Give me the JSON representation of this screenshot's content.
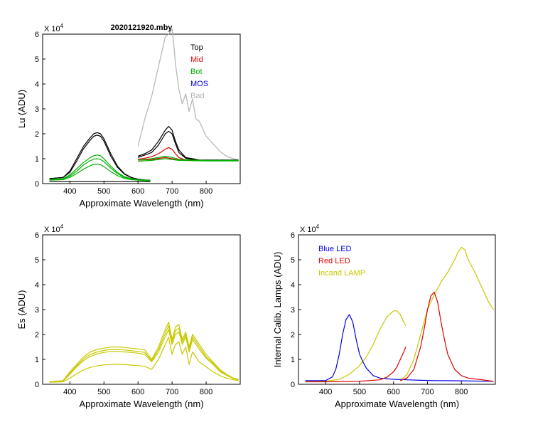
{
  "chart_data": [
    {
      "id": "lu",
      "type": "line",
      "title": "2020121920.mby",
      "xlabel": "Approximate Wavelength (nm)",
      "ylabel": "Lu (ADU)",
      "exponent_label": "X 10",
      "exponent_power": "4",
      "xlim": [
        320,
        900
      ],
      "ylim": [
        0,
        6
      ],
      "xticks": [
        400,
        500,
        600,
        700,
        800
      ],
      "yticks": [
        0,
        1,
        2,
        3,
        4,
        5,
        6
      ],
      "legend": [
        {
          "name": "Top",
          "color": "#000000"
        },
        {
          "name": "Mid",
          "color": "#e00000"
        },
        {
          "name": "Bot",
          "color": "#00b000"
        },
        {
          "name": "MOS",
          "color": "#0000d0"
        },
        {
          "name": "Bad",
          "color": "#b4b4b4"
        }
      ],
      "series": [
        {
          "name": "Bad",
          "color": "#b4b4b4",
          "x": [
            600,
            620,
            640,
            660,
            680,
            690,
            695,
            700,
            705,
            710,
            720,
            725,
            730,
            740,
            750,
            760,
            770,
            780,
            800,
            820,
            840,
            860,
            880,
            895
          ],
          "y": [
            1.5,
            2.6,
            3.5,
            4.7,
            5.9,
            6.0,
            6.1,
            6.2,
            5.6,
            4.8,
            3.8,
            3.5,
            3.2,
            3.6,
            2.9,
            3.4,
            2.6,
            2.5,
            1.9,
            1.6,
            1.3,
            1.1,
            1.0,
            0.95
          ]
        },
        {
          "name": "Top 1",
          "color": "#000000",
          "x": [
            340,
            380,
            400,
            420,
            440,
            460,
            470,
            480,
            490,
            500,
            520,
            540,
            560,
            580,
            600,
            620,
            636
          ],
          "y": [
            0.2,
            0.25,
            0.5,
            1.0,
            1.5,
            1.85,
            2.0,
            2.05,
            2.0,
            1.8,
            1.2,
            0.7,
            0.4,
            0.25,
            0.18,
            0.15,
            0.14
          ]
        },
        {
          "name": "Top 2",
          "color": "#000000",
          "x": [
            340,
            380,
            400,
            420,
            440,
            460,
            470,
            480,
            490,
            500,
            520,
            540,
            560,
            580,
            600,
            620,
            636
          ],
          "y": [
            0.2,
            0.25,
            0.45,
            0.9,
            1.4,
            1.75,
            1.9,
            1.95,
            1.9,
            1.7,
            1.1,
            0.65,
            0.38,
            0.24,
            0.17,
            0.14,
            0.13
          ]
        },
        {
          "name": "Top 3",
          "color": "#000000",
          "x": [
            600,
            620,
            640,
            660,
            680,
            690,
            700,
            710,
            720,
            740,
            760,
            780,
            800,
            840,
            880,
            895
          ],
          "y": [
            1.1,
            1.2,
            1.35,
            1.7,
            2.15,
            2.3,
            2.15,
            1.7,
            1.35,
            1.05,
            1.0,
            0.95,
            0.95,
            0.95,
            0.95,
            0.95
          ]
        },
        {
          "name": "Top 4",
          "color": "#000000",
          "x": [
            600,
            620,
            640,
            660,
            680,
            690,
            700,
            710,
            720,
            740,
            760,
            780,
            800,
            840,
            880,
            895
          ],
          "y": [
            1.05,
            1.15,
            1.25,
            1.55,
            2.0,
            2.1,
            2.0,
            1.6,
            1.25,
            1.02,
            0.97,
            0.93,
            0.93,
            0.93,
            0.93,
            0.93
          ]
        },
        {
          "name": "Mid 1",
          "color": "#e00000",
          "x": [
            600,
            620,
            640,
            660,
            680,
            690,
            700,
            710,
            720,
            740,
            760,
            800,
            840,
            880,
            895
          ],
          "y": [
            0.98,
            1.02,
            1.08,
            1.2,
            1.38,
            1.45,
            1.38,
            1.2,
            1.05,
            0.95,
            0.93,
            0.92,
            0.92,
            0.92,
            0.92
          ]
        },
        {
          "name": "Mid 2",
          "color": "#e00000",
          "x": [
            600,
            640,
            680,
            700,
            720,
            760,
            800,
            895
          ],
          "y": [
            0.95,
            0.97,
            1.05,
            1.0,
            0.95,
            0.93,
            0.92,
            0.92
          ]
        },
        {
          "name": "Bot 1",
          "color": "#00b000",
          "x": [
            340,
            380,
            400,
            420,
            440,
            460,
            470,
            480,
            490,
            500,
            520,
            540,
            560,
            580,
            600,
            620,
            636
          ],
          "y": [
            0.16,
            0.2,
            0.35,
            0.6,
            0.85,
            1.05,
            1.12,
            1.15,
            1.12,
            1.0,
            0.7,
            0.45,
            0.28,
            0.2,
            0.16,
            0.14,
            0.13
          ]
        },
        {
          "name": "Bot 2",
          "color": "#00b000",
          "x": [
            340,
            380,
            400,
            420,
            440,
            460,
            470,
            480,
            490,
            500,
            520,
            540,
            560,
            580,
            600,
            620,
            636
          ],
          "y": [
            0.15,
            0.18,
            0.3,
            0.5,
            0.75,
            0.92,
            0.98,
            1.0,
            0.97,
            0.88,
            0.62,
            0.4,
            0.25,
            0.18,
            0.15,
            0.13,
            0.12
          ]
        },
        {
          "name": "Bot 3",
          "color": "#00b000",
          "x": [
            340,
            380,
            400,
            420,
            440,
            460,
            470,
            480,
            490,
            500,
            520,
            540,
            560,
            580,
            600,
            620,
            636
          ],
          "y": [
            0.14,
            0.16,
            0.25,
            0.4,
            0.58,
            0.72,
            0.77,
            0.78,
            0.76,
            0.68,
            0.48,
            0.32,
            0.21,
            0.16,
            0.14,
            0.12,
            0.11
          ]
        },
        {
          "name": "Bot 4",
          "color": "#00b000",
          "x": [
            600,
            640,
            680,
            700,
            720,
            760,
            800,
            840,
            895
          ],
          "y": [
            0.95,
            1.0,
            1.1,
            1.05,
            0.98,
            0.95,
            0.93,
            0.93,
            0.93
          ]
        },
        {
          "name": "Bot 5",
          "color": "#00b000",
          "x": [
            600,
            640,
            680,
            700,
            720,
            760,
            800,
            840,
            895
          ],
          "y": [
            0.9,
            0.93,
            1.0,
            0.97,
            0.93,
            0.92,
            0.91,
            0.91,
            0.91
          ]
        },
        {
          "name": "Dark",
          "color": "#000000",
          "x": [
            340,
            400,
            500,
            600,
            636
          ],
          "y": [
            0.08,
            0.08,
            0.08,
            0.08,
            0.08
          ]
        }
      ]
    },
    {
      "id": "es",
      "type": "line",
      "title": "",
      "xlabel": "Approximate Wavelength (nm)",
      "ylabel": "Es  (ADU)",
      "exponent_label": "X 10",
      "exponent_power": "4",
      "xlim": [
        320,
        900
      ],
      "ylim": [
        0,
        6
      ],
      "xticks": [
        400,
        500,
        600,
        700,
        800
      ],
      "yticks": [
        0,
        1,
        2,
        3,
        4,
        5,
        6
      ],
      "legend": [],
      "series": [
        {
          "name": "Es 1",
          "color": "#c8c800",
          "x": [
            340,
            380,
            400,
            420,
            440,
            460,
            480,
            500,
            520,
            540,
            560,
            580,
            600,
            620,
            640,
            660,
            680,
            690,
            700,
            710,
            720,
            730,
            740,
            750,
            760,
            780,
            800,
            820,
            840,
            860,
            880,
            895
          ],
          "y": [
            0.1,
            0.15,
            0.5,
            0.8,
            1.1,
            1.3,
            1.4,
            1.45,
            1.5,
            1.5,
            1.48,
            1.45,
            1.42,
            1.38,
            1.0,
            1.5,
            2.2,
            2.5,
            1.8,
            2.3,
            2.4,
            1.8,
            2.1,
            1.5,
            2.0,
            1.6,
            1.2,
            0.9,
            0.6,
            0.4,
            0.25,
            0.2
          ]
        },
        {
          "name": "Es 2",
          "color": "#c8c800",
          "x": [
            340,
            380,
            400,
            420,
            440,
            460,
            480,
            500,
            520,
            540,
            560,
            580,
            600,
            620,
            640,
            660,
            680,
            690,
            700,
            710,
            720,
            730,
            740,
            750,
            760,
            780,
            800,
            820,
            840,
            860,
            880,
            895
          ],
          "y": [
            0.1,
            0.14,
            0.45,
            0.75,
            1.02,
            1.2,
            1.3,
            1.36,
            1.4,
            1.4,
            1.38,
            1.35,
            1.32,
            1.28,
            0.95,
            1.4,
            2.05,
            2.35,
            1.7,
            2.15,
            2.25,
            1.7,
            2.0,
            1.4,
            1.9,
            1.5,
            1.1,
            0.85,
            0.55,
            0.38,
            0.24,
            0.19
          ]
        },
        {
          "name": "Es 3",
          "color": "#c8c800",
          "x": [
            340,
            380,
            400,
            420,
            440,
            460,
            480,
            500,
            520,
            540,
            560,
            580,
            600,
            620,
            640,
            660,
            680,
            690,
            700,
            710,
            720,
            730,
            740,
            750,
            760,
            780,
            800,
            820,
            840,
            860,
            880,
            895
          ],
          "y": [
            0.1,
            0.13,
            0.4,
            0.7,
            0.95,
            1.12,
            1.22,
            1.28,
            1.32,
            1.32,
            1.3,
            1.28,
            1.25,
            1.2,
            0.9,
            1.3,
            1.9,
            2.2,
            1.6,
            2.0,
            2.1,
            1.6,
            1.9,
            1.3,
            1.8,
            1.4,
            1.05,
            0.8,
            0.52,
            0.36,
            0.23,
            0.18
          ]
        },
        {
          "name": "Es 4",
          "color": "#c8c800",
          "x": [
            340,
            380,
            400,
            420,
            440,
            460,
            480,
            500,
            520,
            540,
            560,
            580,
            600,
            620,
            640,
            660,
            680,
            690,
            700,
            710,
            720,
            730,
            740,
            750,
            760,
            780,
            800,
            820,
            840,
            860,
            880,
            895
          ],
          "y": [
            0.08,
            0.1,
            0.25,
            0.42,
            0.58,
            0.68,
            0.74,
            0.78,
            0.8,
            0.8,
            0.79,
            0.77,
            0.75,
            0.72,
            0.6,
            1.0,
            1.6,
            1.9,
            1.2,
            1.6,
            1.7,
            1.2,
            1.5,
            0.8,
            1.3,
            0.9,
            0.7,
            0.5,
            0.35,
            0.25,
            0.18,
            0.15
          ]
        }
      ]
    },
    {
      "id": "lamps",
      "type": "line",
      "title": "",
      "xlabel": "Approximate Wavelength (nm)",
      "ylabel": "Internal Calib. Lamps  (ADU)",
      "exponent_label": "X 10",
      "exponent_power": "4",
      "xlim": [
        320,
        900
      ],
      "ylim": [
        0,
        6
      ],
      "xticks": [
        400,
        500,
        600,
        700,
        800
      ],
      "yticks": [
        0,
        1,
        2,
        3,
        4,
        5,
        6
      ],
      "legend": [
        {
          "name": "Blue LED",
          "color": "#0000e0"
        },
        {
          "name": "Red LED",
          "color": "#e00000"
        },
        {
          "name": "Incand LAMP",
          "color": "#c8c800"
        }
      ],
      "series": [
        {
          "name": "Incand LAMP A",
          "color": "#c8c800",
          "x": [
            340,
            400,
            440,
            470,
            500,
            520,
            540,
            560,
            580,
            600,
            610,
            620,
            630,
            636
          ],
          "y": [
            0.1,
            0.12,
            0.2,
            0.4,
            0.75,
            1.1,
            1.6,
            2.2,
            2.7,
            2.95,
            2.95,
            2.8,
            2.5,
            2.35
          ]
        },
        {
          "name": "Incand LAMP B",
          "color": "#c8c800",
          "x": [
            620,
            640,
            660,
            680,
            700,
            720,
            740,
            760,
            780,
            790,
            800,
            810,
            820,
            840,
            860,
            880,
            895
          ],
          "y": [
            0.15,
            0.4,
            1.0,
            2.0,
            3.0,
            3.6,
            4.1,
            4.5,
            5.0,
            5.3,
            5.5,
            5.4,
            5.0,
            4.5,
            3.9,
            3.3,
            3.0
          ]
        },
        {
          "name": "Blue LED",
          "color": "#0000e0",
          "x": [
            340,
            400,
            420,
            430,
            440,
            450,
            460,
            470,
            480,
            490,
            500,
            510,
            520,
            530,
            540,
            560,
            600,
            640,
            680,
            720,
            800,
            895
          ],
          "y": [
            0.15,
            0.15,
            0.3,
            0.6,
            1.2,
            2.0,
            2.6,
            2.8,
            2.5,
            1.8,
            1.2,
            0.9,
            0.65,
            0.5,
            0.35,
            0.25,
            0.2,
            0.18,
            0.16,
            0.15,
            0.14,
            0.12
          ]
        },
        {
          "name": "Red LED A",
          "color": "#e00000",
          "x": [
            340,
            400,
            500,
            560,
            580,
            600,
            610,
            620,
            630,
            636
          ],
          "y": [
            0.1,
            0.1,
            0.12,
            0.18,
            0.28,
            0.5,
            0.7,
            1.0,
            1.3,
            1.5
          ]
        },
        {
          "name": "Red LED B",
          "color": "#e00000",
          "x": [
            620,
            640,
            660,
            680,
            690,
            700,
            710,
            720,
            730,
            740,
            750,
            760,
            780,
            800,
            820,
            850,
            880,
            895
          ],
          "y": [
            0.15,
            0.25,
            0.6,
            1.5,
            2.2,
            3.0,
            3.55,
            3.7,
            3.3,
            2.5,
            1.8,
            1.2,
            0.6,
            0.35,
            0.25,
            0.2,
            0.15,
            0.12
          ]
        }
      ]
    }
  ]
}
